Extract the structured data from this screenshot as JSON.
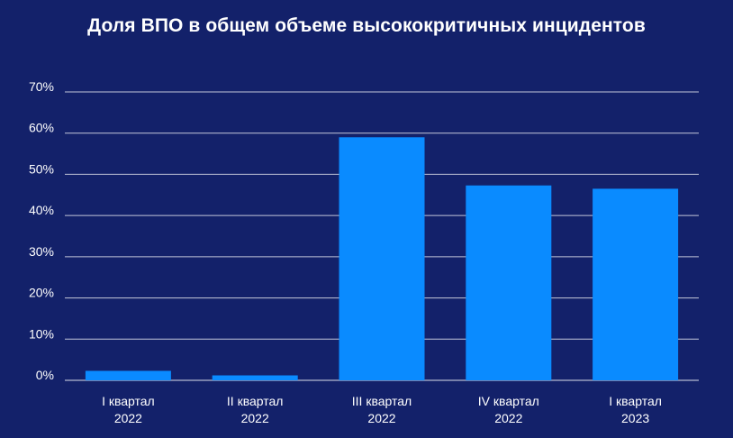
{
  "chart_data": {
    "type": "bar",
    "title": "Доля ВПО в общем объеме высококритичных инцидентов",
    "categories": [
      [
        "I квартал",
        "2022"
      ],
      [
        "II квартал",
        "2022"
      ],
      [
        "III квартал",
        "2022"
      ],
      [
        "IV квартал",
        "2022"
      ],
      [
        "I квартал",
        "2023"
      ]
    ],
    "values": [
      2.3,
      1.2,
      59,
      47.3,
      46.5
    ],
    "ylim": [
      0,
      70
    ],
    "yticks": [
      0,
      10,
      20,
      30,
      40,
      50,
      60,
      70
    ],
    "ytick_format": "{v}%",
    "grid": true,
    "xlabel": "",
    "ylabel": ""
  },
  "colors": {
    "background": "#13216a",
    "bar": "#0a8bff",
    "grid": "#ffffff",
    "text": "#ffffff"
  }
}
